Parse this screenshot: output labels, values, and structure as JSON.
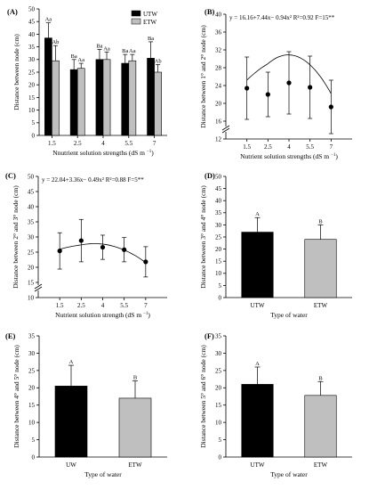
{
  "chart_data": [
    {
      "panel_label": "(A)",
      "type": "bar",
      "categories": [
        "1.5",
        "2.5",
        "4",
        "5.5",
        "7"
      ],
      "series": [
        {
          "name": "UTW",
          "color": "#000000",
          "values": [
            38.5,
            26,
            30,
            28.5,
            30.5
          ],
          "err": [
            6,
            4,
            4,
            3.5,
            6.5
          ],
          "letters": [
            "Aa",
            "Ba",
            "Ba",
            "Ba",
            "Ba"
          ]
        },
        {
          "name": "ETW",
          "color": "#bfbfbf",
          "values": [
            29.5,
            26.5,
            30,
            29.5,
            25
          ],
          "err": [
            6,
            2,
            3,
            2.5,
            3
          ],
          "letters": [
            "Ab",
            "Aa",
            "Aa",
            "Aa",
            "Ab"
          ]
        }
      ],
      "xlabel": "Nnutrient solution strengths",
      "xunit": "(dS m",
      "xunit_sup": "−1",
      "xunit_end": ")",
      "ylabel": "Distance between node (cm)",
      "ylim": [
        0,
        50
      ],
      "yticks": [
        "0",
        "5",
        "10",
        "15",
        "20",
        "25",
        "30",
        "35",
        "40",
        "45",
        "50"
      ],
      "legend": "top-right"
    },
    {
      "panel_label": "(B)",
      "type": "line",
      "x": [
        "1.5",
        "2.5",
        "4",
        "5.5",
        "7"
      ],
      "y": [
        23.4,
        22,
        24.6,
        23.6,
        19.2
      ],
      "err": [
        7,
        5,
        7,
        7,
        6
      ],
      "equation": "y = 16.16+7.44x− 0.94x² R²=0.92 F=15**",
      "xlabel": "Nutrient solution strengths",
      "xunit": "(dS m",
      "xunit_sup": "−1",
      "xunit_end": ")",
      "ylabel": "Distance between 1° and 2° node (cm)",
      "ylim": [
        12,
        40
      ],
      "yticks": [
        "12",
        "16",
        "20",
        "24",
        "28",
        "32",
        "36",
        "40"
      ],
      "axis_break": true
    },
    {
      "panel_label": "(C)",
      "type": "line",
      "x": [
        "1.5",
        "2.5",
        "4",
        "5.5",
        "7"
      ],
      "y": [
        25.4,
        28.8,
        26.6,
        25.8,
        21.8
      ],
      "err": [
        6,
        7,
        4,
        4,
        5
      ],
      "equation": "y = 22.04+3.36x− 0.49x² R²=0.88 F=5**",
      "xlabel": "Nutrient solution strength",
      "xunit": "(dS m",
      "xunit_sup": "−1",
      "xunit_end": ")",
      "ylabel": "Distance between 2° and 3° node (cm)",
      "ylim": [
        10,
        50
      ],
      "yticks": [
        "10",
        "15",
        "20",
        "25",
        "30",
        "35",
        "40",
        "45",
        "50"
      ],
      "axis_break": true
    },
    {
      "panel_label": "(D)",
      "type": "bar",
      "categories": [
        "UTW",
        "ETW"
      ],
      "values": [
        27,
        24
      ],
      "err": [
        6,
        6
      ],
      "colors": [
        "#000000",
        "#bfbfbf"
      ],
      "letters": [
        "A",
        "B"
      ],
      "xlabel": "Type of water",
      "ylabel": "Distance between 3° and 4° node (cm)",
      "ylim": [
        0,
        50
      ],
      "yticks": [
        "0",
        "5",
        "10",
        "15",
        "20",
        "25",
        "30",
        "35",
        "40",
        "45",
        "50"
      ]
    },
    {
      "panel_label": "(E)",
      "type": "bar",
      "categories": [
        "UW",
        "ETW"
      ],
      "values": [
        20.5,
        17
      ],
      "err": [
        6,
        5
      ],
      "colors": [
        "#000000",
        "#bfbfbf"
      ],
      "letters": [
        "A",
        "B"
      ],
      "xlabel": "Type of water",
      "ylabel": "Distance between 4° and 5° node (cm)",
      "ylim": [
        0,
        35
      ],
      "yticks": [
        "0",
        "5",
        "10",
        "15",
        "20",
        "25",
        "30",
        "35"
      ]
    },
    {
      "panel_label": "(F)",
      "type": "bar",
      "categories": [
        "UTW",
        "ETW"
      ],
      "values": [
        21,
        17.8
      ],
      "err": [
        5,
        4
      ],
      "colors": [
        "#000000",
        "#bfbfbf"
      ],
      "letters": [
        "A",
        "B"
      ],
      "xlabel": "Type of water",
      "ylabel": "Distance between 5° and 6° node (cm)",
      "ylim": [
        0,
        35
      ],
      "yticks": [
        "0",
        "5",
        "10",
        "15",
        "20",
        "25",
        "30",
        "35"
      ]
    }
  ]
}
